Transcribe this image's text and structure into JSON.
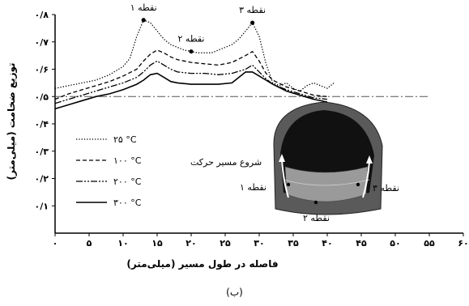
{
  "caption": "(ب)",
  "chart_data": {
    "type": "line",
    "xlabel": "فاصله در طول مسیر (میلی‌متر)",
    "ylabel": "توزیع ضخامت (میلی‌متر)",
    "xlim": [
      0,
      60
    ],
    "ylim": [
      0,
      0.8
    ],
    "x_ticks": [
      0,
      5,
      10,
      15,
      20,
      25,
      30,
      35,
      40,
      45,
      50,
      55,
      60
    ],
    "x_tick_labels": [
      "۰",
      "۵",
      "۱۰",
      "۱۵",
      "۲۰",
      "۲۵",
      "۳۰",
      "۳۵",
      "۴۰",
      "۴۵",
      "۵۰",
      "۵۵",
      "۶۰"
    ],
    "y_ticks": [
      0.1,
      0.2,
      0.3,
      0.4,
      0.5,
      0.6,
      0.7,
      0.8
    ],
    "y_tick_labels": [
      "۰/۱",
      "۰/۲",
      "۰/۳",
      "۰/۴",
      "۰/۵",
      "۰/۶",
      "۰/۷",
      "۰/۸"
    ],
    "reference_line": 0.5,
    "series": [
      {
        "name": "۲۵ °C",
        "style": "dotted",
        "x": [
          0,
          2,
          4,
          6,
          8,
          10,
          11,
          12,
          13,
          14,
          15,
          16,
          17,
          18,
          19,
          20,
          21,
          22,
          23,
          24,
          25,
          26,
          27,
          28,
          29,
          30,
          31,
          32,
          33,
          34,
          35,
          36,
          37,
          38,
          39,
          40,
          41
        ],
        "y": [
          0.53,
          0.54,
          0.55,
          0.56,
          0.58,
          0.61,
          0.64,
          0.72,
          0.78,
          0.77,
          0.74,
          0.71,
          0.69,
          0.68,
          0.67,
          0.665,
          0.66,
          0.66,
          0.66,
          0.67,
          0.68,
          0.69,
          0.71,
          0.74,
          0.77,
          0.72,
          0.62,
          0.55,
          0.54,
          0.55,
          0.53,
          0.52,
          0.54,
          0.55,
          0.54,
          0.53,
          0.55
        ]
      },
      {
        "name": "۱۰۰ °C",
        "style": "dashed",
        "x": [
          0,
          2,
          4,
          6,
          8,
          10,
          12,
          13,
          14,
          15,
          16,
          17,
          18,
          20,
          22,
          24,
          26,
          28,
          29,
          30,
          31,
          32,
          34,
          36,
          38,
          40
        ],
        "y": [
          0.49,
          0.51,
          0.525,
          0.54,
          0.555,
          0.575,
          0.6,
          0.63,
          0.655,
          0.67,
          0.66,
          0.645,
          0.635,
          0.625,
          0.62,
          0.615,
          0.625,
          0.65,
          0.665,
          0.63,
          0.585,
          0.56,
          0.535,
          0.52,
          0.505,
          0.5
        ]
      },
      {
        "name": "۲۰۰ °C",
        "style": "dashdotdot",
        "x": [
          0,
          2,
          4,
          6,
          8,
          10,
          12,
          13,
          14,
          15,
          16,
          17,
          18,
          20,
          22,
          24,
          26,
          28,
          29,
          30,
          31,
          32,
          34,
          36,
          38,
          40
        ],
        "y": [
          0.475,
          0.49,
          0.505,
          0.52,
          0.535,
          0.55,
          0.57,
          0.59,
          0.615,
          0.63,
          0.615,
          0.6,
          0.59,
          0.585,
          0.585,
          0.58,
          0.585,
          0.6,
          0.615,
          0.59,
          0.565,
          0.545,
          0.525,
          0.51,
          0.495,
          0.49
        ]
      },
      {
        "name": "۳۰۰ °C",
        "style": "solid",
        "x": [
          0,
          2,
          4,
          6,
          8,
          10,
          12,
          13,
          14,
          15,
          16,
          17,
          18,
          20,
          22,
          24,
          26,
          27,
          28,
          29,
          30,
          31,
          32,
          34,
          36,
          38,
          40
        ],
        "y": [
          0.455,
          0.47,
          0.485,
          0.5,
          0.51,
          0.525,
          0.545,
          0.56,
          0.58,
          0.585,
          0.57,
          0.555,
          0.55,
          0.545,
          0.545,
          0.545,
          0.55,
          0.57,
          0.59,
          0.59,
          0.575,
          0.56,
          0.545,
          0.52,
          0.505,
          0.49,
          0.48
        ]
      }
    ],
    "annotations": [
      {
        "text": "نقطه ۱",
        "x": 13,
        "y": 0.78
      },
      {
        "text": "نقطه ۲",
        "x": 20,
        "y": 0.665
      },
      {
        "text": "نقطه ۳",
        "x": 29,
        "y": 0.77
      }
    ],
    "legend_position": "bottom-left"
  },
  "inset": {
    "start_label": "شروع مسیر حرکت",
    "point1_label": "نقطه ۱",
    "point2_label": "نقطه ۲",
    "point3_label": "نقطه ۳"
  }
}
